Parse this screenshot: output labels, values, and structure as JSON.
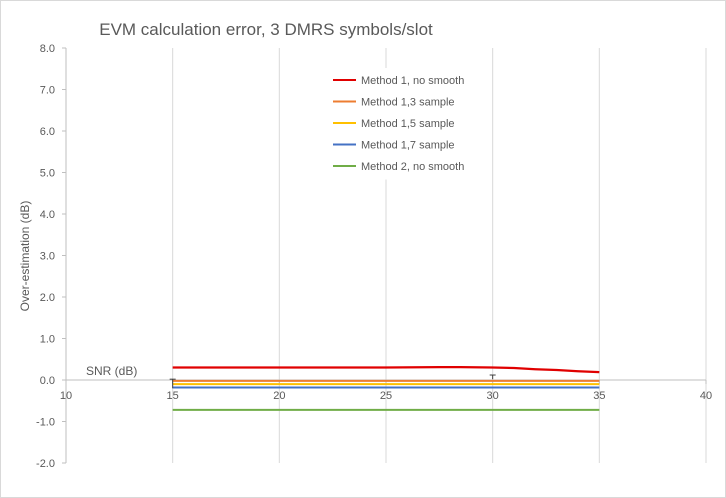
{
  "chart_data": {
    "type": "line",
    "title": "EVM calculation error, 3 DMRS symbols/slot",
    "xlabel": "SNR (dB)",
    "ylabel": "Over-estimation (dB)",
    "xlim": [
      10,
      40
    ],
    "ylim": [
      -2.0,
      8.0
    ],
    "x_ticks": [
      "10",
      "15",
      "20",
      "25",
      "30",
      "35",
      "40"
    ],
    "y_ticks": [
      "8.0",
      "7.0",
      "6.0",
      "5.0",
      "4.0",
      "3.0",
      "2.0",
      "1.0",
      "0.0",
      "-1.0",
      "-2.0"
    ],
    "grid": "vertical",
    "legend_position": "top-center",
    "x": [
      15,
      20,
      25,
      27.5,
      28.5,
      30,
      31,
      32,
      33,
      34,
      35
    ],
    "series": [
      {
        "name": "Method 1, no smooth",
        "color": "#e00000",
        "values": [
          0.3,
          0.3,
          0.3,
          0.31,
          0.31,
          0.3,
          0.29,
          0.26,
          0.24,
          0.21,
          0.19
        ]
      },
      {
        "name": "Method 1,3 sample",
        "color": "#ed7d31",
        "values": [
          -0.02,
          -0.02,
          -0.02,
          -0.02,
          -0.02,
          -0.02,
          -0.02,
          -0.02,
          -0.02,
          -0.02,
          -0.02
        ]
      },
      {
        "name": "Method 1,5 sample",
        "color": "#ffc000",
        "values": [
          -0.1,
          -0.1,
          -0.1,
          -0.1,
          -0.1,
          -0.1,
          -0.1,
          -0.1,
          -0.1,
          -0.1,
          -0.1
        ]
      },
      {
        "name": "Method 1,7 sample",
        "color": "#4472c4",
        "values": [
          -0.18,
          -0.18,
          -0.18,
          -0.18,
          -0.18,
          -0.18,
          -0.18,
          -0.18,
          -0.18,
          -0.18,
          -0.18
        ]
      },
      {
        "name": "Method 2, no smooth",
        "color": "#70ad47",
        "values": [
          -0.72,
          -0.72,
          -0.72,
          -0.72,
          -0.72,
          -0.72,
          -0.72,
          -0.72,
          -0.72,
          -0.72,
          -0.72
        ]
      }
    ]
  }
}
